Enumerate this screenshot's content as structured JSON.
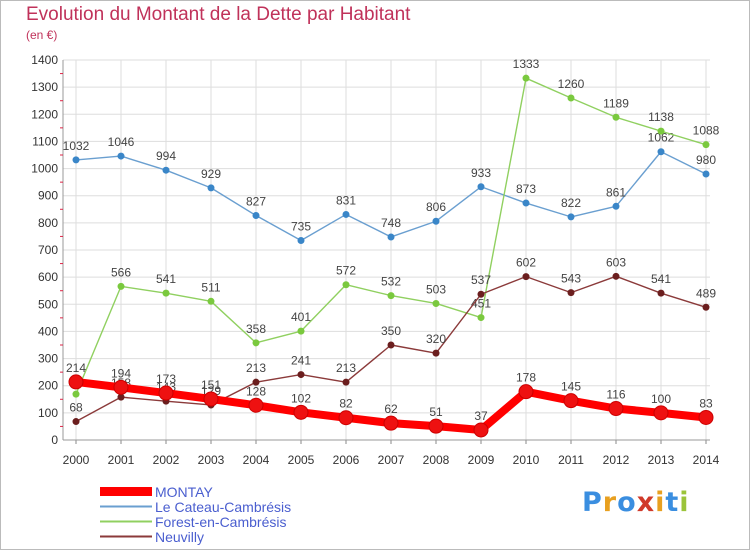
{
  "title": "Evolution du Montant de la Dette par Habitant",
  "subtitle": "(en €)",
  "logo": {
    "text": "Proxiti",
    "letter_colors": [
      "#3a8ee0",
      "#e8a020",
      "#3a8ee0",
      "#d03a2a",
      "#e8a020",
      "#3a8ee0",
      "#9bc43a"
    ]
  },
  "chart_data": {
    "type": "line",
    "title": "Evolution du Montant de la Dette par Habitant",
    "ylabel": "(en €)",
    "xlabel": "",
    "ylim": [
      0,
      1400
    ],
    "yticks": [
      0,
      100,
      200,
      300,
      400,
      500,
      600,
      700,
      800,
      900,
      1000,
      1100,
      1200,
      1300,
      1400
    ],
    "grid": true,
    "legend_position": "bottom-left",
    "x": [
      "2000",
      "2001",
      "2002",
      "2003",
      "2004",
      "2005",
      "2006",
      "2007",
      "2008",
      "2009",
      "2010",
      "2011",
      "2012",
      "2013",
      "2014"
    ],
    "series": [
      {
        "name": "MONTAY",
        "color": "#ff0000",
        "marker_color": "#ee1111",
        "highlight": true,
        "values": [
          214,
          194,
          173,
          151,
          128,
          102,
          82,
          62,
          51,
          37,
          178,
          145,
          116,
          100,
          83
        ],
        "labels": [
          "214",
          "194",
          "173",
          "151",
          "128",
          "102",
          "82",
          "62",
          "51",
          "37",
          "178",
          "145",
          "116",
          "100",
          "83"
        ]
      },
      {
        "name": "Le Cateau-Cambrésis",
        "color": "#6a9fd0",
        "marker_color": "#3a86c8",
        "values": [
          1032,
          1046,
          994,
          929,
          827,
          735,
          831,
          748,
          806,
          933,
          873,
          822,
          861,
          1062,
          980
        ],
        "labels": [
          "1032",
          "1046",
          "994",
          "929",
          "827",
          "735",
          "831",
          "748",
          "806",
          "933",
          "873",
          "822",
          "861",
          "1062",
          "980"
        ]
      },
      {
        "name": "Forest-en-Cambrésis",
        "color": "#90d060",
        "marker_color": "#7ac93e",
        "values": [
          169,
          566,
          541,
          511,
          358,
          401,
          572,
          532,
          503,
          451,
          1333,
          1260,
          1189,
          1138,
          1088
        ],
        "labels": [
          "",
          "566",
          "541",
          "511",
          "358",
          "401",
          "572",
          "532",
          "503",
          "451",
          "1333",
          "1260",
          "1189",
          "1138",
          "1088"
        ]
      },
      {
        "name": "Neuvilly",
        "color": "#8b3a3a",
        "marker_color": "#6b1e1e",
        "values": [
          68,
          158,
          143,
          129,
          213,
          241,
          213,
          350,
          320,
          537,
          602,
          543,
          603,
          541,
          489
        ],
        "labels": [
          "68",
          "158",
          "143",
          "129",
          "213",
          "241",
          "213",
          "350",
          "320",
          "537",
          "602",
          "543",
          "603",
          "541",
          "489"
        ]
      }
    ]
  }
}
